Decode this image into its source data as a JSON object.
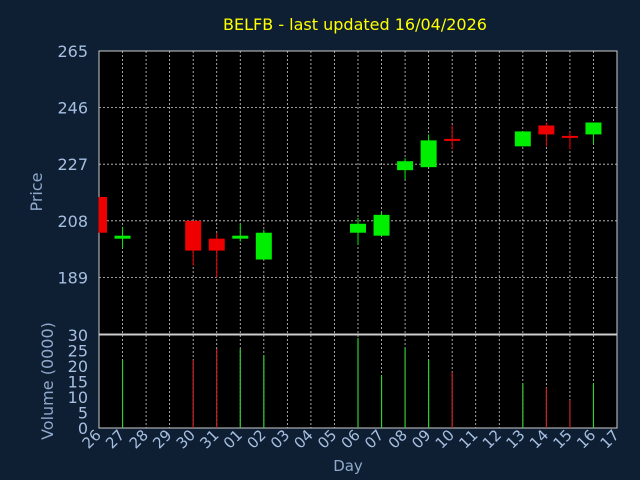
{
  "title": "BELFB - last updated 16/04/2026",
  "colors": {
    "background": "#0f1f33",
    "plot": "#000000",
    "title": "#ffff00",
    "axis_text": "#8fa9cc",
    "tick_text": "#a6bfe0",
    "grid": "#cccccc",
    "up": "#00ee00",
    "down": "#ee0000",
    "vol_up": "#33cc33",
    "vol_down": "#cc2222"
  },
  "chart_data": [
    {
      "type": "candlestick",
      "ylabel": "Price",
      "ylim": [
        170,
        265
      ],
      "yticks": [
        189,
        208,
        227,
        246,
        265
      ],
      "x_categories": [
        "26",
        "27",
        "28",
        "29",
        "30",
        "31",
        "01",
        "02",
        "03",
        "04",
        "05",
        "06",
        "07",
        "08",
        "09",
        "10",
        "11",
        "12",
        "13",
        "14",
        "15",
        "16",
        "17"
      ],
      "candles": [
        {
          "x": "26",
          "open": 216.0,
          "high": 216.0,
          "low": 204.0,
          "close": 204.0
        },
        {
          "x": "27",
          "open": 202.0,
          "high": 206.0,
          "low": 199.0,
          "close": 203.0
        },
        {
          "x": "30",
          "open": 208.0,
          "high": 208.0,
          "low": 193.0,
          "close": 198.0
        },
        {
          "x": "31",
          "open": 202.0,
          "high": 204.0,
          "low": 189.0,
          "close": 198.0
        },
        {
          "x": "01",
          "open": 202.0,
          "high": 207.0,
          "low": 201.0,
          "close": 203.0
        },
        {
          "x": "02",
          "open": 195.0,
          "high": 205.0,
          "low": 195.0,
          "close": 204.0
        },
        {
          "x": "06",
          "open": 204.0,
          "high": 209.0,
          "low": 200.0,
          "close": 207.0
        },
        {
          "x": "07",
          "open": 203.0,
          "high": 211.0,
          "low": 203.0,
          "close": 210.0
        },
        {
          "x": "08",
          "open": 225.0,
          "high": 229.0,
          "low": 222.0,
          "close": 228.0
        },
        {
          "x": "09",
          "open": 226.0,
          "high": 237.0,
          "low": 226.0,
          "close": 235.0
        },
        {
          "x": "10",
          "open": 235.5,
          "high": 240.0,
          "low": 232.0,
          "close": 235.0
        },
        {
          "x": "13",
          "open": 233.0,
          "high": 238.0,
          "low": 233.0,
          "close": 238.0
        },
        {
          "x": "14",
          "open": 240.0,
          "high": 241.0,
          "low": 233.0,
          "close": 237.0
        },
        {
          "x": "15",
          "open": 236.5,
          "high": 238.0,
          "low": 232.0,
          "close": 236.0
        },
        {
          "x": "16",
          "open": 237.0,
          "high": 241.0,
          "low": 234.0,
          "close": 241.0
        }
      ]
    },
    {
      "type": "bar",
      "ylabel": "Volume (0000)",
      "xlabel": "Day",
      "ylim": [
        0,
        30
      ],
      "yticks": [
        0,
        5,
        10,
        15,
        20,
        25,
        30
      ],
      "x_categories": [
        "26",
        "27",
        "28",
        "29",
        "30",
        "31",
        "01",
        "02",
        "03",
        "04",
        "05",
        "06",
        "07",
        "08",
        "09",
        "10",
        "11",
        "12",
        "13",
        "14",
        "15",
        "16",
        "17"
      ],
      "bars": [
        {
          "x": "27",
          "value": 22,
          "dir": "up"
        },
        {
          "x": "30",
          "value": 22,
          "dir": "down"
        },
        {
          "x": "31",
          "value": 25.5,
          "dir": "down"
        },
        {
          "x": "01",
          "value": 25.5,
          "dir": "up"
        },
        {
          "x": "02",
          "value": 23.5,
          "dir": "up"
        },
        {
          "x": "06",
          "value": 29,
          "dir": "up"
        },
        {
          "x": "07",
          "value": 17,
          "dir": "up"
        },
        {
          "x": "08",
          "value": 26,
          "dir": "up"
        },
        {
          "x": "09",
          "value": 22,
          "dir": "up"
        },
        {
          "x": "10",
          "value": 18,
          "dir": "down"
        },
        {
          "x": "13",
          "value": 14.5,
          "dir": "up"
        },
        {
          "x": "14",
          "value": 13,
          "dir": "down"
        },
        {
          "x": "15",
          "value": 9,
          "dir": "down"
        },
        {
          "x": "16",
          "value": 14.5,
          "dir": "up"
        }
      ]
    }
  ]
}
